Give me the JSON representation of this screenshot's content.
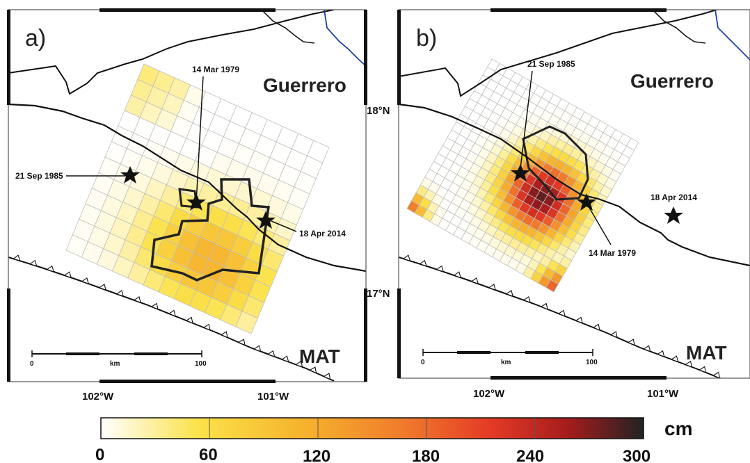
{
  "panels": [
    {
      "label": "a)",
      "region": "Guerrero",
      "trench": "MAT",
      "events": [
        {
          "name": "14 Mar 1979"
        },
        {
          "name": "21 Sep 1985"
        },
        {
          "name": "18 Apr 2014"
        }
      ],
      "scalebar": {
        "start": "0",
        "unit": "km",
        "end": "100"
      },
      "lat_labels": [
        "18°N",
        "17°N"
      ],
      "lon_labels": [
        "102°W",
        "101°W"
      ]
    },
    {
      "label": "b)",
      "region": "Guerrero",
      "trench": "MAT",
      "events": [
        {
          "name": "21 Sep 1985"
        },
        {
          "name": "18 Apr 2014"
        },
        {
          "name": "14 Mar 1979"
        }
      ],
      "scalebar": {
        "start": "0",
        "unit": "km",
        "end": "100"
      },
      "lon_labels": [
        "102°W",
        "101°W"
      ]
    }
  ],
  "colorbar": {
    "unit": "cm",
    "ticks": [
      "0",
      "60",
      "120",
      "180",
      "240",
      "300"
    ],
    "min": 0,
    "max": 300,
    "colors": [
      "#ffffff",
      "#fbe24a",
      "#f6b12c",
      "#f07a2c",
      "#e43a26",
      "#a61c1c",
      "#222222"
    ]
  },
  "colors": {
    "coastline": "#111111",
    "river": "#1f3f9f",
    "grid_line": "#bfbfbf"
  }
}
